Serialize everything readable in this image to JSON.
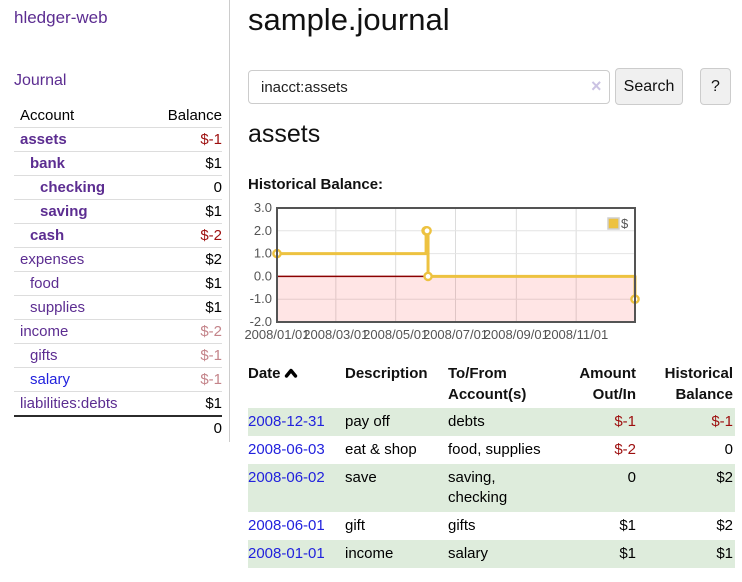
{
  "sidebar": {
    "brand": "hledger-web",
    "nav": {
      "journal": "Journal"
    },
    "accounts": {
      "header": {
        "account": "Account",
        "balance": "Balance"
      },
      "rows": [
        {
          "name": "assets",
          "balance": "$-1"
        },
        {
          "name": "bank",
          "balance": "$1"
        },
        {
          "name": "checking",
          "balance": "0"
        },
        {
          "name": "saving",
          "balance": "$1"
        },
        {
          "name": "cash",
          "balance": "$-2"
        },
        {
          "name": "expenses",
          "balance": "$2"
        },
        {
          "name": "food",
          "balance": "$1"
        },
        {
          "name": "supplies",
          "balance": "$1"
        },
        {
          "name": "income",
          "balance": "$-2"
        },
        {
          "name": "gifts",
          "balance": "$-1"
        },
        {
          "name": "salary",
          "balance": "$-1"
        },
        {
          "name": "liabilities:debts",
          "balance": "$1"
        }
      ],
      "total": "0"
    }
  },
  "header": {
    "title": "sample.journal"
  },
  "search": {
    "value": "inacct:assets",
    "clear_icon": "×",
    "button": "Search",
    "help_button": "?"
  },
  "register": {
    "heading": "assets",
    "chart_label": "Historical Balance:",
    "table": {
      "headers": {
        "date": "Date",
        "description": "Description",
        "accounts": "To/From Account(s)",
        "amount": "Amount Out/In",
        "historical": "Historical Balance"
      },
      "rows": [
        {
          "date": "2008-12-31",
          "description": "pay off",
          "accounts": "debts",
          "amount": "$-1",
          "historical": "$-1"
        },
        {
          "date": "2008-06-03",
          "description": "eat & shop",
          "accounts": "food, supplies",
          "amount": "$-2",
          "historical": "0"
        },
        {
          "date": "2008-06-02",
          "description": "save",
          "accounts": "saving, checking",
          "amount": "0",
          "historical": "$2"
        },
        {
          "date": "2008-06-01",
          "description": "gift",
          "accounts": "gifts",
          "amount": "$1",
          "historical": "$2"
        },
        {
          "date": "2008-01-01",
          "description": "income",
          "accounts": "salary",
          "amount": "$1",
          "historical": "$1"
        }
      ]
    }
  },
  "chart_data": {
    "type": "line",
    "title": "Historical Balance:",
    "legend": {
      "name": "$",
      "position": "top-right"
    },
    "series": [
      {
        "name": "$",
        "color": "#edc240",
        "step": true,
        "points": [
          {
            "date": "2008-01-01",
            "day": 0,
            "value": 1
          },
          {
            "date": "2008-06-01",
            "day": 152,
            "value": 2
          },
          {
            "date": "2008-06-02",
            "day": 153,
            "value": 2
          },
          {
            "date": "2008-06-03",
            "day": 154,
            "value": 0
          },
          {
            "date": "2008-12-31",
            "day": 365,
            "value": -1
          }
        ]
      }
    ],
    "x_ticks": [
      {
        "day": 0,
        "label": "2008/01/01"
      },
      {
        "day": 60,
        "label": "2008/03/01"
      },
      {
        "day": 121,
        "label": "2008/05/01"
      },
      {
        "day": 182,
        "label": "2008/07/01"
      },
      {
        "day": 244,
        "label": "2008/09/01"
      },
      {
        "day": 305,
        "label": "2008/11/01"
      }
    ],
    "y_ticks": [
      {
        "value": 3,
        "label": "3.0"
      },
      {
        "value": 2,
        "label": "2.0"
      },
      {
        "value": 1,
        "label": "1.0"
      },
      {
        "value": 0,
        "label": "0.0"
      },
      {
        "value": -1,
        "label": "-1.0"
      },
      {
        "value": -2,
        "label": "-2.0"
      }
    ],
    "xlim": [
      0,
      365
    ],
    "ylim": [
      -2,
      3
    ],
    "grid": true,
    "negative_region": true
  },
  "colors": {
    "link_purple": "#5c2d91",
    "link_blue": "#2222dd",
    "negative": "#9d0e0e",
    "negative_muted": "#c4848a",
    "row_stripe_green": "#deecdc",
    "chart_series_yellow": "#edc240",
    "chart_negative_fill": "rgba(255,0,0,0.10)",
    "chart_zero_line": "#8b0000",
    "chart_axis_text": "#545454",
    "chart_border": "#545454"
  }
}
